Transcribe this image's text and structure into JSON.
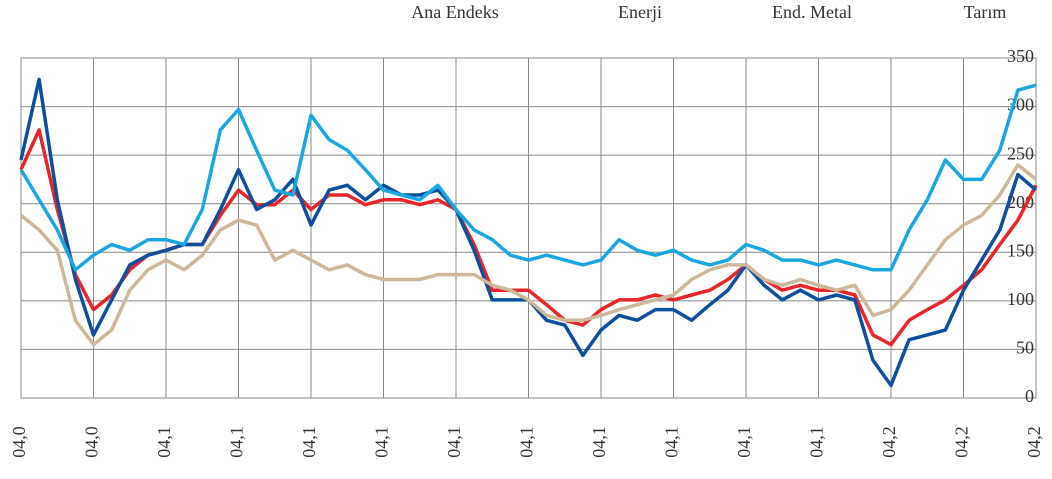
{
  "chart_data": {
    "type": "line",
    "categories": [
      "04,0",
      null,
      null,
      null,
      "04,0",
      null,
      null,
      null,
      "04,1",
      null,
      null,
      null,
      "04,1",
      null,
      null,
      null,
      "04,1",
      null,
      null,
      null,
      "04,1",
      null,
      null,
      null,
      "04,1",
      null,
      null,
      null,
      "04,1",
      null,
      null,
      null,
      "04,1",
      null,
      null,
      null,
      "04,1",
      null,
      null,
      null,
      "04,1",
      null,
      null,
      null,
      "04,1",
      null,
      null,
      null,
      "04,2",
      null,
      null,
      null,
      "04,2",
      null,
      null,
      null,
      "04,2"
    ],
    "series": [
      {
        "name": "Ana Endeks",
        "color": "#e8262a",
        "values": [
          235,
          276,
          194,
          127,
          91,
          106,
          132,
          147,
          152,
          158,
          158,
          188,
          214,
          199,
          199,
          214,
          194,
          209,
          209,
          199,
          204,
          204,
          199,
          204,
          194,
          158,
          111,
          111,
          111,
          96,
          80,
          75,
          91,
          101,
          101,
          106,
          101,
          106,
          111,
          122,
          137,
          122,
          111,
          116,
          111,
          111,
          106,
          65,
          55,
          80,
          91,
          101,
          116,
          132,
          158,
          183,
          219
        ]
      },
      {
        "name": "Enerji",
        "color": "#0d4f9c",
        "values": [
          245,
          328,
          204,
          122,
          65,
          101,
          137,
          147,
          152,
          158,
          158,
          194,
          235,
          194,
          204,
          225,
          178,
          214,
          219,
          204,
          219,
          209,
          209,
          214,
          194,
          152,
          101,
          101,
          101,
          80,
          75,
          44,
          70,
          85,
          80,
          91,
          91,
          80,
          96,
          111,
          137,
          116,
          101,
          111,
          101,
          106,
          101,
          39,
          13,
          60,
          65,
          70,
          111,
          142,
          173,
          230,
          214
        ]
      },
      {
        "name": "End. Metal",
        "color": "#1aa7e0",
        "values": [
          235,
          204,
          173,
          132,
          147,
          158,
          152,
          163,
          163,
          158,
          194,
          276,
          297,
          255,
          214,
          209,
          291,
          266,
          255,
          235,
          214,
          209,
          204,
          219,
          194,
          173,
          163,
          147,
          142,
          147,
          142,
          137,
          142,
          163,
          152,
          147,
          152,
          142,
          137,
          142,
          158,
          152,
          142,
          142,
          137,
          142,
          137,
          132,
          132,
          173,
          204,
          245,
          225,
          225,
          255,
          317,
          322
        ]
      },
      {
        "name": "Tarım",
        "color": "#cdb99a",
        "values": [
          188,
          173,
          152,
          80,
          55,
          70,
          111,
          132,
          142,
          132,
          147,
          173,
          183,
          178,
          142,
          152,
          142,
          132,
          137,
          127,
          122,
          122,
          122,
          127,
          127,
          127,
          116,
          111,
          101,
          85,
          80,
          80,
          85,
          91,
          96,
          101,
          106,
          122,
          132,
          137,
          137,
          122,
          116,
          122,
          116,
          111,
          116,
          85,
          91,
          111,
          137,
          163,
          178,
          188,
          209,
          240,
          225
        ]
      }
    ],
    "ylim": [
      0,
      350
    ],
    "yticks": [
      0,
      50,
      100,
      150,
      200,
      250,
      300,
      350
    ],
    "grid": true,
    "legend": "top"
  }
}
